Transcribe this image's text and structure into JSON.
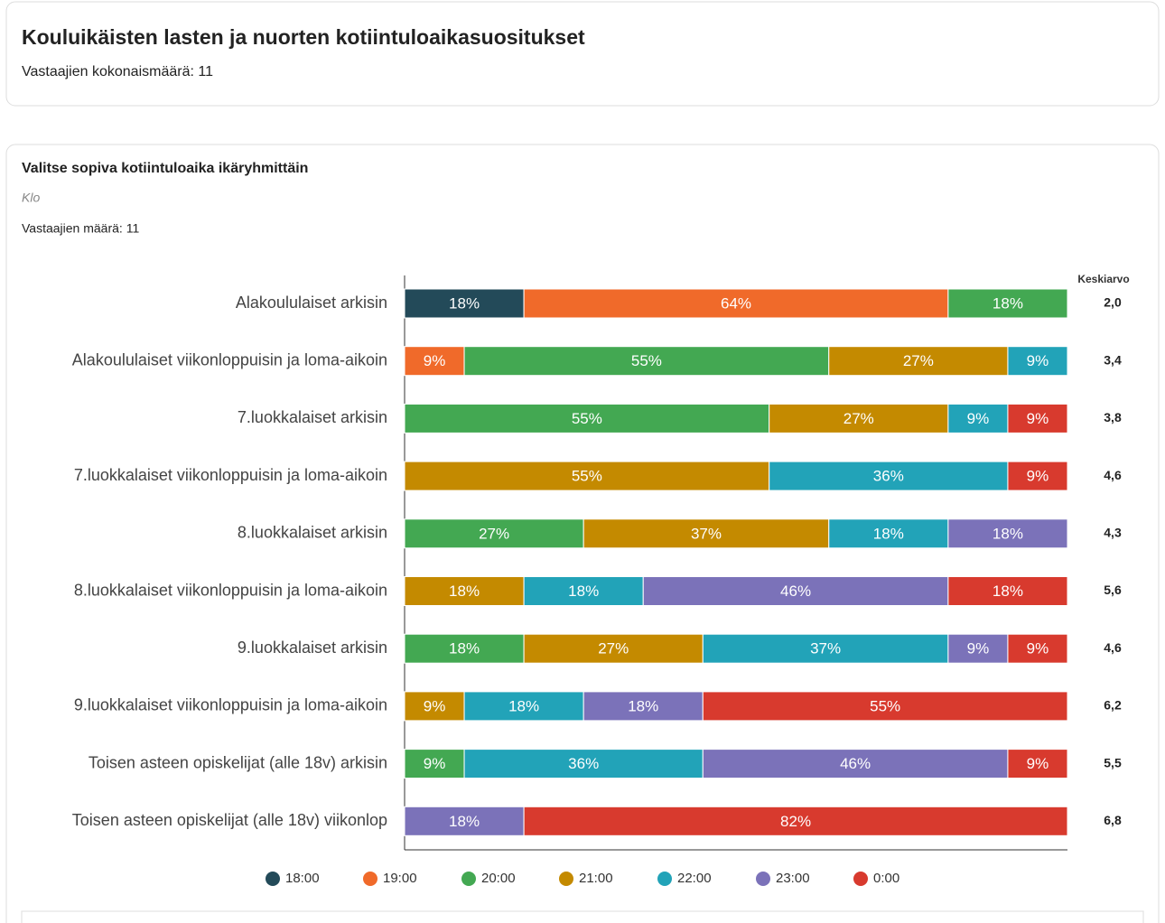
{
  "header": {
    "title": "Kouluikäisten lasten ja nuorten kotiintuloaikasuositukset",
    "total": "Vastaajien kokonaismäärä: 11"
  },
  "question": {
    "title": "Valitse sopiva kotiintuloaika ikäryhmittäin",
    "unit": "Klo",
    "count": "Vastaajien määrä: 11"
  },
  "chart_data": {
    "type": "stacked-bar",
    "xlim": [
      0,
      100
    ],
    "categories": [
      "Alakoululaiset arkisin",
      "Alakoululaiset viikonloppuisin ja loma-aikoin",
      "7.luokkalaiset arkisin",
      "7.luokkalaiset viikonloppuisin ja loma-aikoin",
      "8.luokkalaiset arkisin",
      "8.luokkalaiset viikonloppuisin ja loma-aikoin",
      "9.luokkalaiset arkisin",
      "9.luokkalaiset viikonloppuisin ja loma-aikoin",
      "Toisen asteen opiskelijat (alle 18v) arkisin",
      "Toisen asteen opiskelijat (alle 18v) viikonlop"
    ],
    "series": [
      {
        "name": "18:00",
        "color": "#234a59",
        "values": [
          18,
          null,
          null,
          null,
          null,
          null,
          null,
          null,
          null,
          null
        ],
        "value_labels": [
          "18%",
          null,
          null,
          null,
          null,
          null,
          null,
          null,
          null,
          null
        ]
      },
      {
        "name": "19:00",
        "color": "#f06a2a",
        "values": [
          64,
          9,
          null,
          null,
          null,
          null,
          null,
          null,
          null,
          null
        ],
        "value_labels": [
          "64%",
          "9%",
          null,
          null,
          null,
          null,
          null,
          null,
          null,
          null
        ]
      },
      {
        "name": "20:00",
        "color": "#43a852",
        "values": [
          18,
          55,
          55,
          null,
          27,
          null,
          18,
          null,
          9,
          null
        ],
        "value_labels": [
          "18%",
          "55%",
          "55%",
          null,
          "27%",
          null,
          "18%",
          null,
          "9%",
          null
        ]
      },
      {
        "name": "21:00",
        "color": "#c48a00",
        "values": [
          null,
          27,
          27,
          55,
          37,
          18,
          27,
          9,
          null,
          null
        ],
        "value_labels": [
          null,
          "27%",
          "27%",
          "55%",
          "37%",
          "18%",
          "27%",
          "9%",
          null,
          null
        ]
      },
      {
        "name": "22:00",
        "color": "#22a3b8",
        "values": [
          null,
          9,
          9,
          36,
          18,
          18,
          37,
          18,
          36,
          null
        ],
        "value_labels": [
          null,
          "9%",
          "9%",
          "36%",
          "18%",
          "18%",
          "37%",
          "18%",
          "36%",
          null
        ]
      },
      {
        "name": "23:00",
        "color": "#7b72b9",
        "values": [
          null,
          null,
          null,
          null,
          18,
          46,
          9,
          18,
          46,
          18
        ],
        "value_labels": [
          null,
          null,
          null,
          null,
          "18%",
          "46%",
          "9%",
          "18%",
          "46%",
          "18%"
        ]
      },
      {
        "name": "0:00",
        "color": "#d83a2e",
        "values": [
          null,
          null,
          9,
          9,
          null,
          18,
          9,
          55,
          9,
          82
        ],
        "value_labels": [
          null,
          null,
          "9%",
          "9%",
          null,
          "18%",
          "9%",
          "55%",
          "9%",
          "82%"
        ]
      }
    ],
    "average": {
      "title": "Keskiarvo",
      "values": [
        2.0,
        3.4,
        3.8,
        4.6,
        4.3,
        5.6,
        4.6,
        6.2,
        5.5,
        6.8
      ],
      "value_labels": [
        "2,0",
        "3,4",
        "3,8",
        "4,6",
        "4,3",
        "5,6",
        "4,6",
        "6,2",
        "5,5",
        "6,8"
      ]
    }
  }
}
